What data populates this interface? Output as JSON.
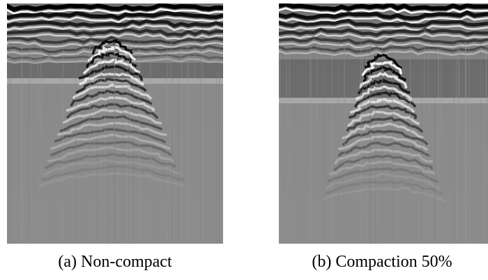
{
  "figure": {
    "panels": [
      {
        "caption": "(a) Non-compact"
      },
      {
        "caption": "(b) Compaction 50%"
      }
    ]
  }
}
